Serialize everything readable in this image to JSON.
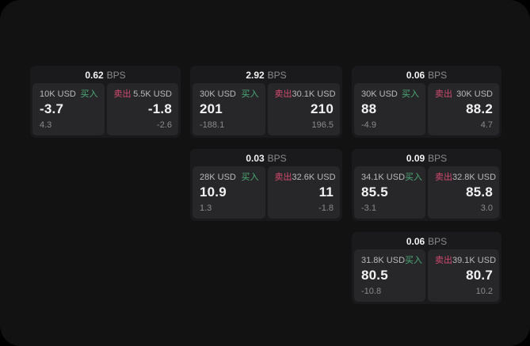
{
  "theme": {
    "bg_outer": "#000000",
    "bg_app": "#121212",
    "bg_card": "#1a1a1c",
    "bg_panel": "#27272a",
    "text_primary": "#f2f2f2",
    "text_secondary": "#b9b9b9",
    "text_muted": "#8b8b8b",
    "buy_color": "#4cab77",
    "sell_color": "#d24a6e"
  },
  "labels": {
    "bps_unit": "BPS",
    "buy": "买入",
    "sell": "卖出"
  },
  "cards": [
    {
      "row": 1,
      "col": 1,
      "bps": "0.62",
      "buy": {
        "size": "10K USD",
        "value": "-3.7",
        "delta": "4.3"
      },
      "sell": {
        "size": "5.5K USD",
        "value": "-1.8",
        "delta": "-2.6"
      }
    },
    {
      "row": 1,
      "col": 2,
      "bps": "2.92",
      "buy": {
        "size": "30K USD",
        "value": "201",
        "delta": "-188.1"
      },
      "sell": {
        "size": "30.1K USD",
        "value": "210",
        "delta": "196.5"
      }
    },
    {
      "row": 1,
      "col": 3,
      "bps": "0.06",
      "buy": {
        "size": "30K USD",
        "value": "88",
        "delta": "-4.9"
      },
      "sell": {
        "size": "30K USD",
        "value": "88.2",
        "delta": "4.7"
      }
    },
    {
      "row": 2,
      "col": 2,
      "bps": "0.03",
      "buy": {
        "size": "28K USD",
        "value": "10.9",
        "delta": "1.3"
      },
      "sell": {
        "size": "32.6K USD",
        "value": "11",
        "delta": "-1.8"
      }
    },
    {
      "row": 2,
      "col": 3,
      "bps": "0.09",
      "buy": {
        "size": "34.1K USD",
        "value": "85.5",
        "delta": "-3.1"
      },
      "sell": {
        "size": "32.8K USD",
        "value": "85.8",
        "delta": "3.0"
      }
    },
    {
      "row": 3,
      "col": 3,
      "bps": "0.06",
      "buy": {
        "size": "31.8K USD",
        "value": "80.5",
        "delta": "-10.8"
      },
      "sell": {
        "size": "39.1K USD",
        "value": "80.7",
        "delta": "10.2"
      }
    }
  ]
}
